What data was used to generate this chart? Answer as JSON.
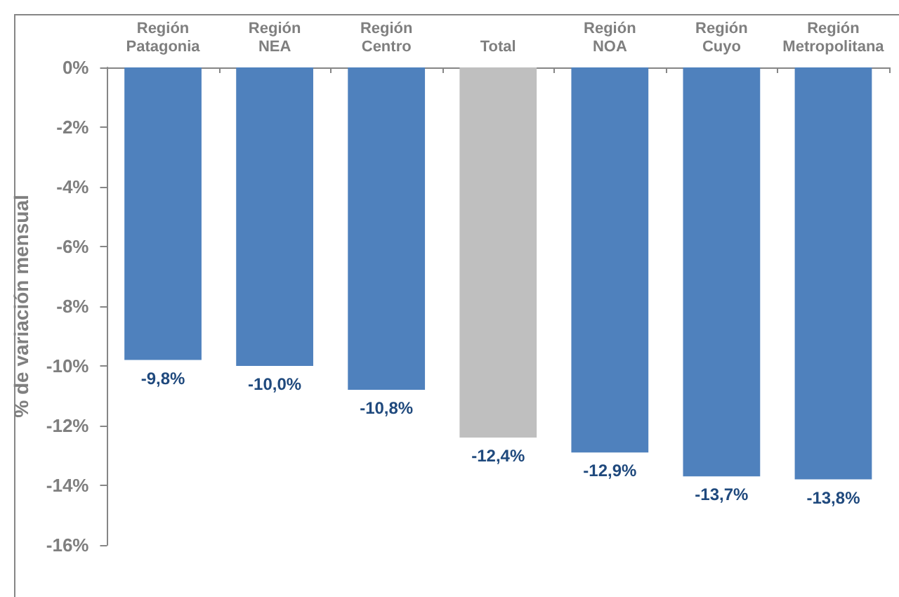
{
  "chart_data": {
    "type": "bar",
    "ylabel": "% de variación mensual",
    "categories": [
      "Región Patagonia",
      "Región NEA",
      "Región Centro",
      "Total",
      "Región NOA",
      "Región Cuyo",
      "Región Metropolitana"
    ],
    "values": [
      -9.8,
      -10.0,
      -10.8,
      -12.4,
      -12.9,
      -13.7,
      -13.8
    ],
    "colors": [
      "#4f81bd",
      "#4f81bd",
      "#4f81bd",
      "#bfbfbf",
      "#4f81bd",
      "#4f81bd",
      "#4f81bd"
    ],
    "value_labels": [
      "-9,8%",
      "-10,0%",
      "-10,8%",
      "-12,4%",
      "-12,9%",
      "-13,7%",
      "-13,8%"
    ],
    "ylim": [
      -16,
      0
    ],
    "yticks": [
      {
        "value": 0,
        "label": "0%"
      },
      {
        "value": -2,
        "label": "-2%"
      },
      {
        "value": -4,
        "label": "-4%"
      },
      {
        "value": -6,
        "label": "-6%"
      },
      {
        "value": -8,
        "label": "-8%"
      },
      {
        "value": -10,
        "label": "-10%"
      },
      {
        "value": -12,
        "label": "-12%"
      },
      {
        "value": -14,
        "label": "-14%"
      },
      {
        "value": -16,
        "label": "-16%"
      }
    ],
    "grid": false
  }
}
